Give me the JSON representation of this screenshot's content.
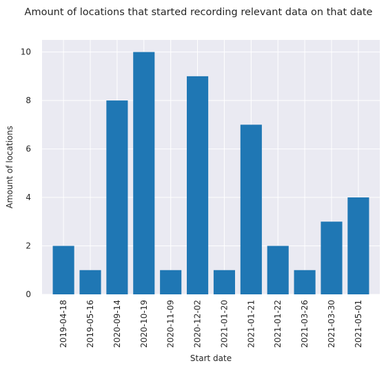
{
  "chart_data": {
    "type": "bar",
    "title": "Amount of locations that started recording relevant data on that date",
    "xlabel": "Start date",
    "ylabel": "Amount of locations",
    "categories": [
      "2019-04-18",
      "2019-05-16",
      "2020-09-14",
      "2020-10-19",
      "2020-11-09",
      "2020-12-02",
      "2021-01-20",
      "2021-01-21",
      "2021-01-22",
      "2021-03-26",
      "2021-03-30",
      "2021-05-01"
    ],
    "values": [
      2,
      1,
      8,
      10,
      1,
      9,
      1,
      7,
      2,
      1,
      3,
      4
    ],
    "ylim": [
      0,
      10.5
    ],
    "yticks": [
      0,
      2,
      4,
      6,
      8,
      10
    ],
    "grid": true,
    "colors": {
      "bar": "#1f77b4",
      "plot_background": "#eaeaf2",
      "grid": "#ffffff",
      "text": "#262626"
    }
  }
}
